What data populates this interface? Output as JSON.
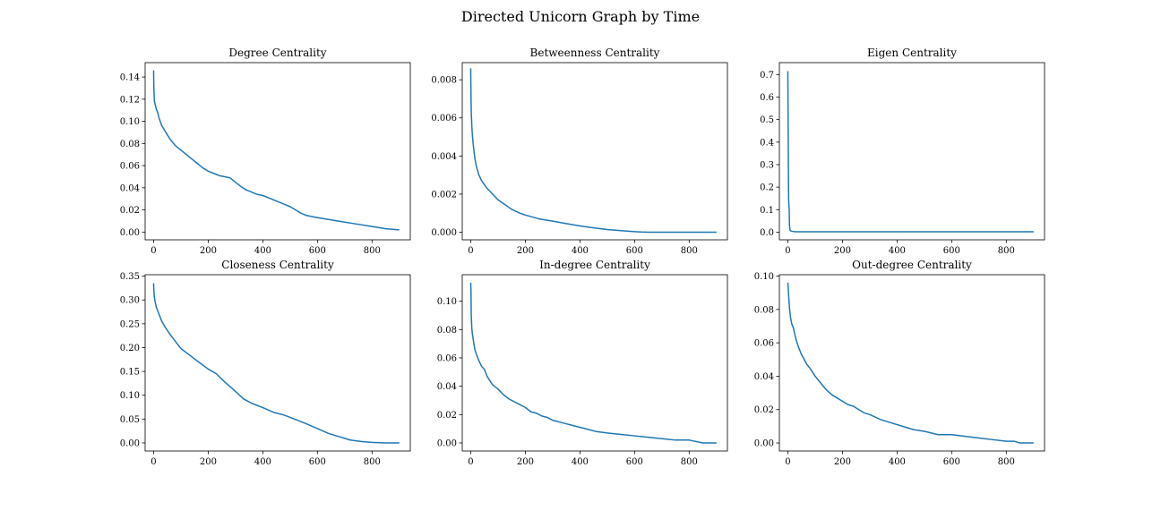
{
  "figure": {
    "title": "Directed Unicorn Graph by Time",
    "line_color": "#1f77b4"
  },
  "chart_data": [
    {
      "type": "line",
      "title": "Degree Centrality",
      "xlabel": "",
      "ylabel": "",
      "xlim": [
        -31,
        940
      ],
      "ylim": [
        -0.007,
        0.153
      ],
      "xticks": [
        0,
        200,
        400,
        600,
        800
      ],
      "xtick_labels": [
        "0",
        "200",
        "400",
        "600",
        "800"
      ],
      "yticks": [
        0,
        0.02,
        0.04,
        0.06,
        0.08,
        0.1,
        0.12,
        0.14
      ],
      "ytick_labels": [
        "0.00",
        "0.02",
        "0.04",
        "0.06",
        "0.08",
        "0.10",
        "0.12",
        "0.14"
      ],
      "grid": false,
      "series": [
        {
          "x": [
            0,
            1,
            3,
            6,
            10,
            15,
            20,
            30,
            40,
            50,
            60,
            70,
            80,
            100,
            120,
            140,
            160,
            180,
            200,
            220,
            240,
            260,
            280,
            300,
            320,
            340,
            360,
            380,
            400,
            420,
            440,
            460,
            480,
            500,
            520,
            540,
            560,
            580,
            600,
            650,
            700,
            750,
            800,
            850,
            900
          ],
          "y": [
            0.146,
            0.13,
            0.118,
            0.115,
            0.111,
            0.108,
            0.103,
            0.096,
            0.092,
            0.088,
            0.084,
            0.081,
            0.078,
            0.074,
            0.07,
            0.066,
            0.062,
            0.058,
            0.055,
            0.053,
            0.051,
            0.05,
            0.049,
            0.045,
            0.041,
            0.038,
            0.036,
            0.034,
            0.033,
            0.031,
            0.029,
            0.027,
            0.025,
            0.023,
            0.02,
            0.017,
            0.015,
            0.014,
            0.013,
            0.011,
            0.009,
            0.007,
            0.005,
            0.003,
            0.002
          ]
        }
      ]
    },
    {
      "type": "line",
      "title": "Betweenness Centrality",
      "xlabel": "",
      "ylabel": "",
      "xlim": [
        -31,
        940
      ],
      "ylim": [
        -0.0004,
        0.0089
      ],
      "xticks": [
        0,
        200,
        400,
        600,
        800
      ],
      "xtick_labels": [
        "0",
        "200",
        "400",
        "600",
        "800"
      ],
      "yticks": [
        0,
        0.002,
        0.004,
        0.006,
        0.008
      ],
      "ytick_labels": [
        "0.000",
        "0.002",
        "0.004",
        "0.006",
        "0.008"
      ],
      "grid": false,
      "series": [
        {
          "x": [
            0,
            1,
            2,
            4,
            6,
            10,
            15,
            20,
            30,
            40,
            50,
            60,
            80,
            100,
            120,
            150,
            180,
            200,
            250,
            300,
            350,
            400,
            450,
            500,
            550,
            600,
            625,
            650,
            700,
            800,
            900
          ],
          "y": [
            0.0086,
            0.0072,
            0.0063,
            0.0056,
            0.0051,
            0.0045,
            0.0039,
            0.0035,
            0.003,
            0.0027,
            0.0025,
            0.0023,
            0.002,
            0.0017,
            0.0015,
            0.0012,
            0.001,
            0.0009,
            0.0007,
            0.00058,
            0.00045,
            0.00033,
            0.00023,
            0.00014,
            8e-05,
            3e-05,
            1e-05,
            0.0,
            0.0,
            0.0,
            0.0
          ]
        }
      ]
    },
    {
      "type": "line",
      "title": "Eigen Centrality",
      "xlabel": "",
      "ylabel": "",
      "xlim": [
        -31,
        940
      ],
      "ylim": [
        -0.034,
        0.753
      ],
      "xticks": [
        0,
        200,
        400,
        600,
        800
      ],
      "xtick_labels": [
        "0",
        "200",
        "400",
        "600",
        "800"
      ],
      "yticks": [
        0,
        0.1,
        0.2,
        0.3,
        0.4,
        0.5,
        0.6,
        0.7
      ],
      "ytick_labels": [
        "0.0",
        "0.1",
        "0.2",
        "0.3",
        "0.4",
        "0.5",
        "0.6",
        "0.7"
      ],
      "grid": false,
      "series": [
        {
          "x": [
            0,
            1,
            2,
            3,
            4,
            5,
            6,
            8,
            10,
            15,
            20,
            30,
            50,
            100,
            300,
            500,
            700,
            900
          ],
          "y": [
            0.715,
            0.5,
            0.3,
            0.14,
            0.12,
            0.1,
            0.03,
            0.01,
            0.006,
            0.004,
            0.003,
            0.002,
            0.002,
            0.002,
            0.002,
            0.002,
            0.002,
            0.002
          ]
        }
      ]
    },
    {
      "type": "line",
      "title": "Closeness Centrality",
      "xlabel": "",
      "ylabel": "",
      "xlim": [
        -31,
        940
      ],
      "ylim": [
        -0.017,
        0.353
      ],
      "xticks": [
        0,
        200,
        400,
        600,
        800
      ],
      "xtick_labels": [
        "0",
        "200",
        "400",
        "600",
        "800"
      ],
      "yticks": [
        0,
        0.05,
        0.1,
        0.15,
        0.2,
        0.25,
        0.3,
        0.35
      ],
      "ytick_labels": [
        "0.00",
        "0.05",
        "0.10",
        "0.15",
        "0.20",
        "0.25",
        "0.30",
        "0.35"
      ],
      "grid": false,
      "series": [
        {
          "x": [
            0,
            1,
            3,
            6,
            10,
            20,
            30,
            40,
            60,
            80,
            100,
            130,
            160,
            200,
            230,
            260,
            280,
            300,
            330,
            360,
            400,
            440,
            480,
            520,
            560,
            600,
            640,
            680,
            720,
            760,
            800,
            850,
            900
          ],
          "y": [
            0.335,
            0.32,
            0.305,
            0.295,
            0.285,
            0.27,
            0.255,
            0.245,
            0.228,
            0.213,
            0.198,
            0.185,
            0.172,
            0.155,
            0.145,
            0.128,
            0.118,
            0.108,
            0.092,
            0.083,
            0.074,
            0.064,
            0.058,
            0.049,
            0.04,
            0.03,
            0.02,
            0.013,
            0.006,
            0.003,
            0.001,
            0.0,
            0.0
          ]
        }
      ]
    },
    {
      "type": "line",
      "title": "In-degree Centrality",
      "xlabel": "",
      "ylabel": "",
      "xlim": [
        -31,
        940
      ],
      "ylim": [
        -0.0057,
        0.1187
      ],
      "xticks": [
        0,
        200,
        400,
        600,
        800
      ],
      "xtick_labels": [
        "0",
        "200",
        "400",
        "600",
        "800"
      ],
      "yticks": [
        0,
        0.02,
        0.04,
        0.06,
        0.08,
        0.1
      ],
      "ytick_labels": [
        "0.00",
        "0.02",
        "0.04",
        "0.06",
        "0.08",
        "0.10"
      ],
      "grid": false,
      "series": [
        {
          "x": [
            0,
            1,
            2,
            4,
            6,
            10,
            15,
            20,
            30,
            40,
            50,
            60,
            70,
            80,
            100,
            120,
            140,
            160,
            180,
            200,
            220,
            240,
            260,
            280,
            300,
            340,
            380,
            420,
            460,
            500,
            550,
            600,
            650,
            700,
            750,
            800,
            850,
            900
          ],
          "y": [
            0.113,
            0.108,
            0.09,
            0.081,
            0.077,
            0.072,
            0.066,
            0.063,
            0.058,
            0.054,
            0.052,
            0.047,
            0.044,
            0.041,
            0.038,
            0.034,
            0.031,
            0.029,
            0.027,
            0.025,
            0.022,
            0.021,
            0.019,
            0.018,
            0.016,
            0.014,
            0.012,
            0.01,
            0.008,
            0.007,
            0.006,
            0.005,
            0.004,
            0.003,
            0.002,
            0.002,
            0.0,
            0.0
          ]
        }
      ]
    },
    {
      "type": "line",
      "title": "Out-degree Centrality",
      "xlabel": "",
      "ylabel": "",
      "xlim": [
        -31,
        940
      ],
      "ylim": [
        -0.0048,
        0.1008
      ],
      "xticks": [
        0,
        200,
        400,
        600,
        800
      ],
      "xtick_labels": [
        "0",
        "200",
        "400",
        "600",
        "800"
      ],
      "yticks": [
        0,
        0.02,
        0.04,
        0.06,
        0.08,
        0.1
      ],
      "ytick_labels": [
        "0.00",
        "0.02",
        "0.04",
        "0.06",
        "0.08",
        "0.10"
      ],
      "grid": false,
      "series": [
        {
          "x": [
            0,
            1,
            3,
            6,
            10,
            15,
            20,
            30,
            40,
            50,
            60,
            70,
            80,
            100,
            120,
            140,
            160,
            180,
            200,
            220,
            240,
            260,
            280,
            300,
            340,
            380,
            420,
            460,
            500,
            550,
            600,
            650,
            700,
            750,
            800,
            830,
            850,
            900
          ],
          "y": [
            0.096,
            0.094,
            0.088,
            0.081,
            0.075,
            0.071,
            0.069,
            0.062,
            0.057,
            0.053,
            0.05,
            0.047,
            0.045,
            0.04,
            0.036,
            0.032,
            0.029,
            0.027,
            0.025,
            0.023,
            0.022,
            0.02,
            0.018,
            0.017,
            0.014,
            0.012,
            0.01,
            0.008,
            0.007,
            0.005,
            0.005,
            0.004,
            0.003,
            0.002,
            0.001,
            0.001,
            0.0,
            0.0
          ]
        }
      ]
    }
  ]
}
